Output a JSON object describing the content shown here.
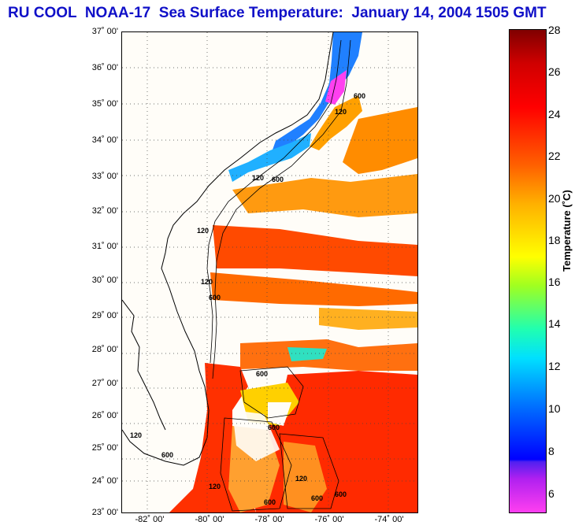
{
  "title": "RU COOL  NOAA-17  Sea Surface Temperature:  January 14, 2004 1505 GMT",
  "map": {
    "latitudes": [
      "37˚ 00'",
      "36˚ 00'",
      "35˚ 00'",
      "34˚ 00'",
      "33˚ 00'",
      "32˚ 00'",
      "31˚ 00'",
      "30˚ 00'",
      "29˚ 00'",
      "28˚ 00'",
      "27˚ 00'",
      "26˚ 00'",
      "25˚ 00'",
      "24˚ 00'",
      "23˚ 00'"
    ],
    "longitudes": [
      "-82˚ 00'",
      "-80˚ 00'",
      "-78˚ 00'",
      "-76˚ 00'",
      "-74˚ 00'"
    ],
    "contour_labels": [
      "600",
      "120",
      "600",
      "120",
      "600",
      "120",
      "600",
      "600",
      "120",
      "600",
      "120",
      "600",
      "600",
      "120",
      "600",
      "120"
    ]
  },
  "colorbar": {
    "ticks": [
      "28",
      "26",
      "24",
      "22",
      "20",
      "18",
      "16",
      "14",
      "12",
      "10",
      "8",
      "6"
    ],
    "label": "Temperature (˚C)"
  },
  "colors": {
    "title": "#1010c8",
    "land": "#fffdf8",
    "ocean_warm": "#ff2a00"
  }
}
